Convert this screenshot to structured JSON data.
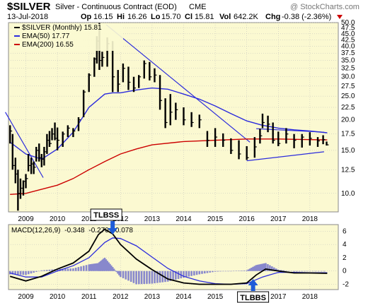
{
  "header": {
    "symbol": "$SILVER",
    "description": "Silver - Continuous Contract (EOD)",
    "exchange": "CME",
    "watermark": "@ StockCharts.com",
    "date": "13-Jul-2018",
    "quote": {
      "open_label": "Op",
      "open": "16.15",
      "high_label": "Hi",
      "high": "16.26",
      "low_label": "Lo",
      "low": "15.70",
      "close_label": "Cl",
      "close": "15.81",
      "vol_label": "Vol",
      "vol": "642.2K",
      "chg_label": "Chg",
      "chg": "-0.38 (-2.36%)"
    }
  },
  "colors": {
    "plot_bg": "#FBF9D1",
    "price": "#000000",
    "ema50": "#2B2BDD",
    "ema200": "#CC0000",
    "trendline": "#2B2BDD",
    "histogram": "#8888CC",
    "grid": "#BBBBBB",
    "annotation": "#1E5CD8"
  },
  "chart_data": [
    {
      "type": "line",
      "panel": "price",
      "legend": {
        "price": "$SILVER (Monthly) 15.81",
        "ema50": "EMA(50) 17.77",
        "ema200": "EMA(200) 16.55"
      },
      "y_ticks": [
        10.0,
        12.5,
        15.0,
        17.5,
        20.0,
        22.5,
        25.0,
        27.5,
        30.0,
        32.5,
        35.0,
        37.5,
        40.0,
        42.5,
        45.0,
        47.5,
        50.0
      ],
      "ylim": [
        8.4,
        50.0
      ],
      "scale": "log",
      "xlim": [
        2008.45,
        2018.9
      ],
      "x_ticks": [
        "2009",
        "2010",
        "2011",
        "2012",
        "2013",
        "2014",
        "2015",
        "2016",
        "2017",
        "2018"
      ],
      "x_tick_values": [
        2009,
        2010,
        2011,
        2012,
        2013,
        2014,
        2015,
        2016,
        2017,
        2018
      ],
      "bars": {
        "t": [
          2008.5,
          2008.58,
          2008.67,
          2008.75,
          2008.83,
          2008.92,
          2009.0,
          2009.08,
          2009.17,
          2009.25,
          2009.33,
          2009.42,
          2009.5,
          2009.58,
          2009.67,
          2009.75,
          2009.83,
          2009.92,
          2010.0,
          2010.17,
          2010.33,
          2010.5,
          2010.67,
          2010.83,
          2011.0,
          2011.17,
          2011.25,
          2011.33,
          2011.42,
          2011.58,
          2011.75,
          2011.92,
          2012.08,
          2012.25,
          2012.42,
          2012.58,
          2012.75,
          2012.92,
          2013.08,
          2013.25,
          2013.42,
          2013.58,
          2013.75,
          2014.0,
          2014.25,
          2014.5,
          2014.75,
          2015.0,
          2015.25,
          2015.5,
          2015.75,
          2016.0,
          2016.25,
          2016.42,
          2016.5,
          2016.67,
          2016.83,
          2017.0,
          2017.25,
          2017.5,
          2017.75,
          2018.0,
          2018.25,
          2018.42,
          2018.53
        ],
        "high": [
          19.0,
          17.5,
          14.0,
          12.5,
          11.5,
          11.3,
          12.0,
          14.5,
          14.0,
          13.5,
          15.5,
          16.0,
          14.5,
          15.5,
          17.5,
          18.0,
          18.5,
          19.5,
          18.6,
          17.9,
          19.0,
          18.5,
          20.5,
          26.5,
          31.0,
          36.0,
          44.0,
          49.8,
          38.0,
          43.5,
          42.0,
          32.0,
          34.0,
          33.0,
          30.0,
          30.5,
          35.0,
          34.5,
          32.5,
          30.5,
          24.5,
          25.5,
          23.5,
          22.5,
          21.5,
          21.0,
          18.0,
          18.5,
          17.6,
          16.8,
          16.5,
          15.6,
          17.0,
          18.4,
          21.2,
          20.8,
          19.5,
          17.9,
          18.5,
          17.5,
          17.5,
          17.8,
          17.0,
          17.3,
          16.3
        ],
        "low": [
          16.0,
          12.5,
          11.0,
          8.5,
          9.5,
          9.8,
          10.5,
          12.3,
          12.0,
          12.0,
          13.5,
          13.5,
          12.8,
          13.0,
          14.5,
          15.5,
          16.5,
          16.5,
          15.0,
          15.5,
          17.0,
          17.0,
          18.0,
          20.5,
          26.0,
          30.0,
          34.0,
          32.0,
          33.0,
          33.0,
          26.0,
          26.0,
          28.5,
          26.5,
          26.0,
          27.0,
          29.5,
          29.0,
          28.5,
          22.0,
          18.5,
          19.0,
          20.0,
          19.0,
          18.7,
          18.5,
          15.5,
          15.5,
          15.5,
          14.5,
          13.8,
          13.7,
          14.0,
          16.0,
          18.5,
          17.8,
          16.0,
          15.6,
          16.0,
          15.3,
          15.4,
          15.7,
          15.5,
          15.9,
          15.7
        ],
        "close": [
          18.0,
          13.0,
          12.0,
          10.0,
          10.5,
          11.2,
          11.5,
          13.0,
          13.2,
          12.8,
          15.0,
          14.0,
          13.8,
          14.8,
          16.5,
          16.0,
          17.5,
          16.8,
          16.5,
          17.5,
          18.5,
          18.0,
          20.0,
          26.0,
          30.5,
          35.5,
          42.0,
          35.0,
          36.0,
          41.0,
          30.0,
          28.0,
          32.5,
          28.5,
          27.0,
          30.0,
          34.0,
          30.0,
          30.5,
          24.0,
          19.5,
          21.5,
          22.0,
          20.0,
          19.5,
          20.0,
          16.5,
          17.0,
          16.5,
          15.0,
          14.5,
          14.0,
          15.5,
          17.2,
          19.5,
          19.2,
          16.5,
          16.0,
          17.5,
          16.5,
          17.0,
          16.8,
          16.4,
          16.6,
          15.8
        ]
      },
      "ema50": {
        "t": [
          2008.5,
          2009.0,
          2009.5,
          2010.0,
          2010.5,
          2011.0,
          2011.5,
          2011.75,
          2012.0,
          2012.5,
          2013.0,
          2013.5,
          2014.0,
          2014.5,
          2015.0,
          2015.5,
          2016.0,
          2016.5,
          2017.0,
          2017.5,
          2018.0,
          2018.55
        ],
        "v": [
          16.2,
          14.5,
          13.8,
          15.2,
          17.8,
          22.5,
          25.5,
          25.8,
          25.8,
          26.5,
          27.0,
          26.7,
          25.5,
          24.3,
          22.8,
          21.2,
          19.8,
          19.0,
          18.5,
          18.2,
          18.0,
          17.7
        ]
      },
      "ema200": {
        "t": [
          2008.5,
          2009.0,
          2010.0,
          2010.5,
          2011.0,
          2011.5,
          2012.0,
          2012.5,
          2013.0,
          2014.0,
          2015.0,
          2015.5,
          2016.0,
          2017.0,
          2018.0,
          2018.55
        ],
        "v": [
          9.9,
          10.0,
          10.8,
          11.5,
          12.5,
          13.5,
          14.5,
          15.2,
          15.8,
          16.3,
          16.5,
          16.6,
          16.7,
          16.7,
          16.6,
          16.55
        ]
      },
      "trendlines": [
        {
          "t": [
            2008.35,
            2009.55
          ],
          "v": [
            21.5,
            11.6
          ]
        },
        {
          "t": [
            2011.55,
            2016.1
          ],
          "v": [
            49.0,
            16.2
          ]
        },
        {
          "t": [
            2016.0,
            2018.45
          ],
          "v": [
            13.6,
            14.8
          ]
        },
        {
          "t": [
            2016.3,
            2018.45
          ],
          "v": [
            18.4,
            17.8
          ]
        }
      ]
    },
    {
      "type": "line",
      "panel": "macd",
      "legend": {
        "label": "MACD(12,26,9)",
        "macd": "-0.348",
        "signal": "-0.270",
        "hist": "-0.078"
      },
      "y_ticks": [
        -2,
        0,
        2,
        4,
        6
      ],
      "ylim": [
        -2.8,
        7.0
      ],
      "xlim": [
        2008.45,
        2018.9
      ],
      "x_ticks": [
        "2009",
        "2010",
        "2011",
        "2012",
        "2013",
        "2014",
        "2015",
        "2016",
        "2017",
        "2018"
      ],
      "x_tick_values": [
        2009,
        2010,
        2011,
        2012,
        2013,
        2014,
        2015,
        2016,
        2017,
        2018
      ],
      "macd_line": {
        "t": [
          2008.5,
          2009.0,
          2009.5,
          2010.0,
          2010.5,
          2011.0,
          2011.3,
          2011.5,
          2011.75,
          2012.0,
          2012.5,
          2013.0,
          2013.5,
          2014.0,
          2014.5,
          2015.0,
          2015.5,
          2016.0,
          2016.3,
          2016.6,
          2017.0,
          2017.5,
          2018.0,
          2018.55
        ],
        "v": [
          -0.8,
          -1.5,
          -0.8,
          0.3,
          1.2,
          3.0,
          5.5,
          6.3,
          5.6,
          4.0,
          1.8,
          0.2,
          -1.2,
          -1.8,
          -2.0,
          -2.0,
          -2.0,
          -1.8,
          -0.6,
          0.3,
          0.0,
          -0.3,
          -0.3,
          -0.35
        ]
      },
      "signal_line": {
        "t": [
          2008.5,
          2009.0,
          2009.5,
          2010.0,
          2010.5,
          2011.0,
          2011.5,
          2011.75,
          2012.0,
          2012.5,
          2013.0,
          2013.5,
          2014.0,
          2014.5,
          2015.0,
          2015.5,
          2016.0,
          2016.5,
          2017.0,
          2017.5,
          2018.0,
          2018.55
        ],
        "v": [
          -0.3,
          -0.9,
          -0.9,
          0.0,
          0.8,
          2.0,
          4.3,
          5.0,
          4.9,
          3.8,
          2.1,
          0.4,
          -0.8,
          -1.5,
          -1.9,
          -2.0,
          -1.9,
          -0.9,
          -0.2,
          -0.2,
          -0.25,
          -0.27
        ]
      },
      "histogram": {
        "t": [
          2008.5,
          2009.0,
          2009.5,
          2010.0,
          2010.5,
          2011.0,
          2011.3,
          2011.5,
          2011.75,
          2012.0,
          2012.5,
          2013.0,
          2013.5,
          2014.0,
          2014.5,
          2015.0,
          2015.5,
          2016.0,
          2016.3,
          2016.6,
          2017.0,
          2017.5,
          2018.0,
          2018.55
        ],
        "v": [
          -0.5,
          -0.6,
          0.1,
          0.3,
          0.4,
          1.0,
          1.2,
          2.0,
          0.6,
          -0.9,
          -2.0,
          -1.9,
          -1.6,
          -1.0,
          -0.5,
          -0.1,
          0.0,
          0.1,
          0.9,
          1.2,
          0.2,
          -0.1,
          -0.05,
          -0.08
        ]
      },
      "annotations": [
        {
          "text": "TLBSS",
          "t": 2011.75,
          "side": "top"
        },
        {
          "text": "TLBBS",
          "t": 2016.2,
          "side": "bottom"
        }
      ]
    }
  ]
}
